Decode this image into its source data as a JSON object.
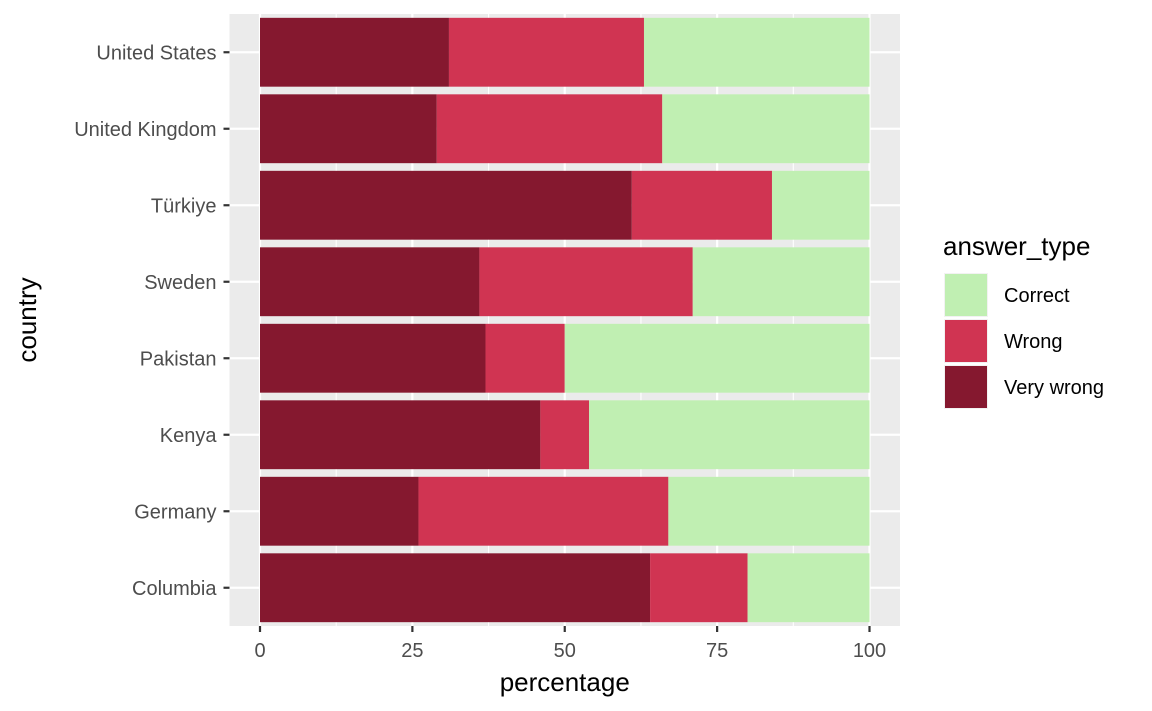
{
  "chart_data": {
    "type": "bar",
    "orientation": "horizontal",
    "stacked": true,
    "categories": [
      "United States",
      "United Kingdom",
      "Türkiye",
      "Sweden",
      "Pakistan",
      "Kenya",
      "Germany",
      "Columbia"
    ],
    "series": [
      {
        "name": "Very wrong",
        "color": "#85182f",
        "values": [
          31,
          29,
          61,
          36,
          37,
          46,
          26,
          64
        ]
      },
      {
        "name": "Wrong",
        "color": "#d03452",
        "values": [
          32,
          37,
          23,
          35,
          13,
          8,
          41,
          16
        ]
      },
      {
        "name": "Correct",
        "color": "#c0efb2",
        "values": [
          37,
          34,
          16,
          29,
          50,
          46,
          33,
          20
        ]
      }
    ],
    "xlabel": "percentage",
    "ylabel": "country",
    "xlim": [
      0,
      100
    ],
    "xticks": [
      "0",
      "25",
      "50",
      "75",
      "100"
    ],
    "grid": true,
    "legend": {
      "title": "answer_type",
      "position": "right",
      "entries": [
        "Correct",
        "Wrong",
        "Very wrong"
      ]
    }
  }
}
